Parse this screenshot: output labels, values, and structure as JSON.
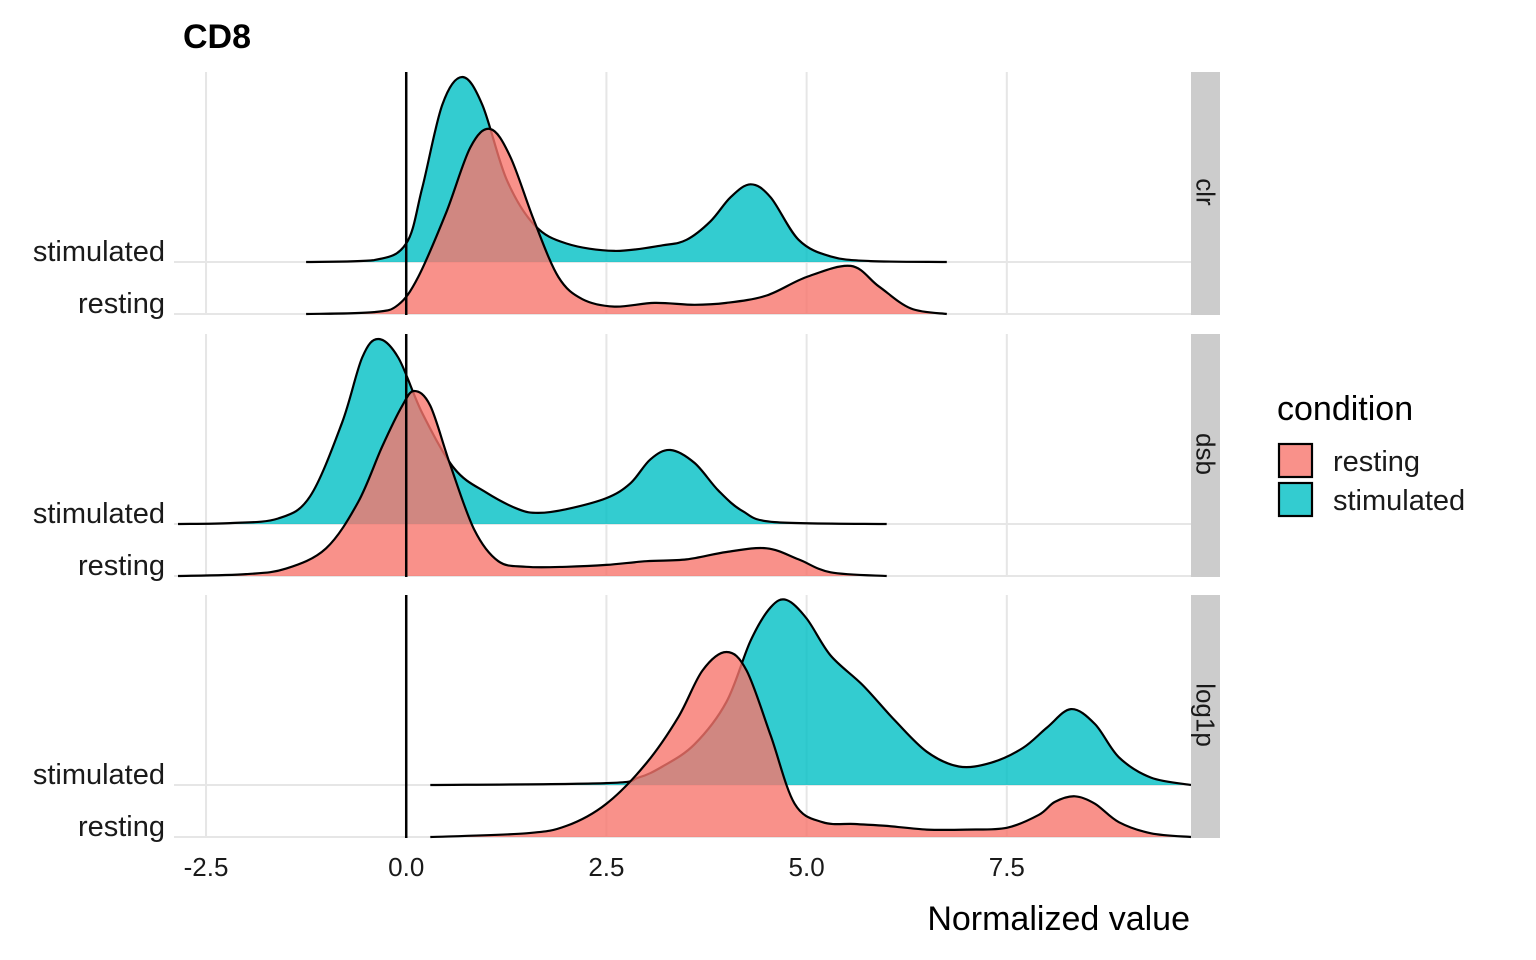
{
  "chart_data": {
    "type": "ridgeline",
    "title": "CD8",
    "xlabel": "Normalized value",
    "xlim": [
      -2.9,
      9.8
    ],
    "xticks": [
      -2.5,
      0,
      2.5,
      5,
      7.5
    ],
    "xtick_labels": [
      "-2.5",
      "0.0",
      "2.5",
      "5.0",
      "7.5"
    ],
    "vline": 0,
    "grid": true,
    "categories": [
      "resting",
      "stimulated"
    ],
    "legend": {
      "title": "condition",
      "position": "right",
      "items": [
        {
          "label": "resting",
          "color": "#F8766D"
        },
        {
          "label": "stimulated",
          "color": "#00BFC4"
        }
      ]
    },
    "panels": [
      {
        "label": "clr",
        "series": [
          {
            "name": "stimulated",
            "color": "#00BFC4",
            "x_range": [
              -1.25,
              6.75
            ],
            "points": [
              [
                -1.25,
                0
              ],
              [
                -0.4,
                0.01
              ],
              [
                0,
                0.1
              ],
              [
                0.2,
                0.4
              ],
              [
                0.45,
                0.85
              ],
              [
                0.7,
                1.0
              ],
              [
                0.95,
                0.85
              ],
              [
                1.25,
                0.45
              ],
              [
                1.6,
                0.2
              ],
              [
                2.0,
                0.1
              ],
              [
                2.6,
                0.06
              ],
              [
                3.2,
                0.09
              ],
              [
                3.5,
                0.12
              ],
              [
                3.8,
                0.22
              ],
              [
                4.05,
                0.35
              ],
              [
                4.3,
                0.42
              ],
              [
                4.55,
                0.35
              ],
              [
                4.9,
                0.12
              ],
              [
                5.3,
                0.03
              ],
              [
                5.8,
                0.005
              ],
              [
                6.75,
                0
              ]
            ]
          },
          {
            "name": "resting",
            "color": "#F8766D",
            "x_range": [
              -1.25,
              6.75
            ],
            "points": [
              [
                -1.25,
                0
              ],
              [
                -0.4,
                0.01
              ],
              [
                -0.1,
                0.05
              ],
              [
                0.15,
                0.2
              ],
              [
                0.5,
                0.55
              ],
              [
                0.8,
                0.9
              ],
              [
                1.05,
                1.0
              ],
              [
                1.3,
                0.85
              ],
              [
                1.6,
                0.5
              ],
              [
                1.9,
                0.2
              ],
              [
                2.2,
                0.08
              ],
              [
                2.6,
                0.04
              ],
              [
                3.1,
                0.06
              ],
              [
                3.6,
                0.05
              ],
              [
                4.0,
                0.06
              ],
              [
                4.5,
                0.1
              ],
              [
                5.0,
                0.2
              ],
              [
                5.55,
                0.26
              ],
              [
                5.9,
                0.15
              ],
              [
                6.3,
                0.03
              ],
              [
                6.75,
                0
              ]
            ]
          }
        ]
      },
      {
        "label": "dsb",
        "series": [
          {
            "name": "stimulated",
            "color": "#00BFC4",
            "x_range": [
              -2.85,
              6.0
            ],
            "points": [
              [
                -2.85,
                0
              ],
              [
                -2.2,
                0.005
              ],
              [
                -1.6,
                0.03
              ],
              [
                -1.2,
                0.15
              ],
              [
                -0.8,
                0.55
              ],
              [
                -0.55,
                0.9
              ],
              [
                -0.35,
                1.0
              ],
              [
                -0.1,
                0.9
              ],
              [
                0.2,
                0.6
              ],
              [
                0.6,
                0.3
              ],
              [
                1.0,
                0.17
              ],
              [
                1.4,
                0.08
              ],
              [
                1.65,
                0.06
              ],
              [
                2.0,
                0.08
              ],
              [
                2.5,
                0.14
              ],
              [
                2.8,
                0.22
              ],
              [
                3.05,
                0.35
              ],
              [
                3.3,
                0.4
              ],
              [
                3.6,
                0.33
              ],
              [
                3.9,
                0.18
              ],
              [
                4.2,
                0.07
              ],
              [
                4.6,
                0.01
              ],
              [
                6.0,
                0
              ]
            ]
          },
          {
            "name": "resting",
            "color": "#F8766D",
            "x_range": [
              -2.85,
              6.0
            ],
            "points": [
              [
                -2.85,
                0
              ],
              [
                -2.0,
                0.01
              ],
              [
                -1.5,
                0.04
              ],
              [
                -1.0,
                0.15
              ],
              [
                -0.6,
                0.4
              ],
              [
                -0.3,
                0.7
              ],
              [
                -0.05,
                0.92
              ],
              [
                0.1,
                1.0
              ],
              [
                0.3,
                0.92
              ],
              [
                0.55,
                0.6
              ],
              [
                0.85,
                0.25
              ],
              [
                1.15,
                0.08
              ],
              [
                1.5,
                0.05
              ],
              [
                2.0,
                0.05
              ],
              [
                2.5,
                0.06
              ],
              [
                3.0,
                0.08
              ],
              [
                3.5,
                0.09
              ],
              [
                4.0,
                0.13
              ],
              [
                4.5,
                0.15
              ],
              [
                4.9,
                0.09
              ],
              [
                5.3,
                0.02
              ],
              [
                6.0,
                0
              ]
            ]
          }
        ]
      },
      {
        "label": "log1p",
        "series": [
          {
            "name": "stimulated",
            "color": "#00BFC4",
            "x_range": [
              0.3,
              9.8
            ],
            "points": [
              [
                0.3,
                0
              ],
              [
                2.5,
                0.01
              ],
              [
                2.9,
                0.04
              ],
              [
                3.2,
                0.1
              ],
              [
                3.6,
                0.22
              ],
              [
                4.0,
                0.45
              ],
              [
                4.3,
                0.78
              ],
              [
                4.55,
                0.96
              ],
              [
                4.75,
                1.0
              ],
              [
                5.0,
                0.9
              ],
              [
                5.3,
                0.7
              ],
              [
                5.7,
                0.54
              ],
              [
                6.1,
                0.35
              ],
              [
                6.5,
                0.18
              ],
              [
                6.9,
                0.1
              ],
              [
                7.3,
                0.12
              ],
              [
                7.7,
                0.2
              ],
              [
                8.0,
                0.31
              ],
              [
                8.3,
                0.41
              ],
              [
                8.6,
                0.33
              ],
              [
                8.9,
                0.15
              ],
              [
                9.3,
                0.04
              ],
              [
                9.8,
                0
              ]
            ]
          },
          {
            "name": "resting",
            "color": "#F8766D",
            "x_range": [
              0.3,
              9.8
            ],
            "points": [
              [
                0.3,
                0
              ],
              [
                1.5,
                0.02
              ],
              [
                2.0,
                0.06
              ],
              [
                2.5,
                0.18
              ],
              [
                3.0,
                0.4
              ],
              [
                3.4,
                0.65
              ],
              [
                3.7,
                0.9
              ],
              [
                4.0,
                1.0
              ],
              [
                4.25,
                0.9
              ],
              [
                4.55,
                0.55
              ],
              [
                4.85,
                0.18
              ],
              [
                5.2,
                0.08
              ],
              [
                5.6,
                0.07
              ],
              [
                6.0,
                0.06
              ],
              [
                6.5,
                0.04
              ],
              [
                7.0,
                0.04
              ],
              [
                7.5,
                0.05
              ],
              [
                7.9,
                0.12
              ],
              [
                8.1,
                0.19
              ],
              [
                8.35,
                0.22
              ],
              [
                8.6,
                0.18
              ],
              [
                8.9,
                0.08
              ],
              [
                9.3,
                0.02
              ],
              [
                9.8,
                0
              ]
            ]
          }
        ]
      }
    ]
  }
}
